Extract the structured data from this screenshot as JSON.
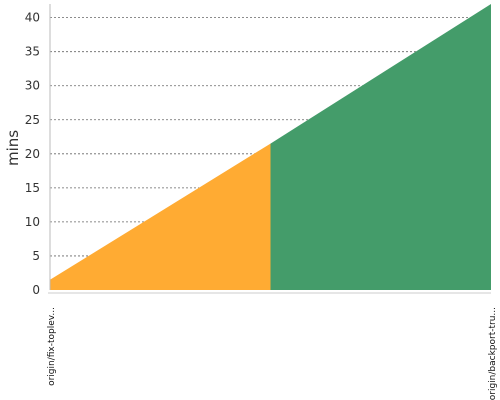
{
  "chart_data": {
    "type": "area",
    "ylabel": "mins",
    "ylim": [
      0,
      42
    ],
    "yticks": [
      0,
      5,
      10,
      15,
      20,
      25,
      30,
      35,
      40
    ],
    "grid": "horizontal dashed",
    "x_ticks": [
      {
        "value": 0,
        "label": "origin/fix-toplev..."
      },
      {
        "value": 2,
        "label": "origin/backport-tru..."
      }
    ],
    "series": [
      {
        "color": "#ffab33",
        "points": [
          {
            "x": 0,
            "y": 1.5
          },
          {
            "x": 1,
            "y": 21.5
          }
        ]
      },
      {
        "color": "#449c6a",
        "points": [
          {
            "x": 1,
            "y": 21.5
          },
          {
            "x": 2,
            "y": 42
          }
        ]
      }
    ]
  }
}
